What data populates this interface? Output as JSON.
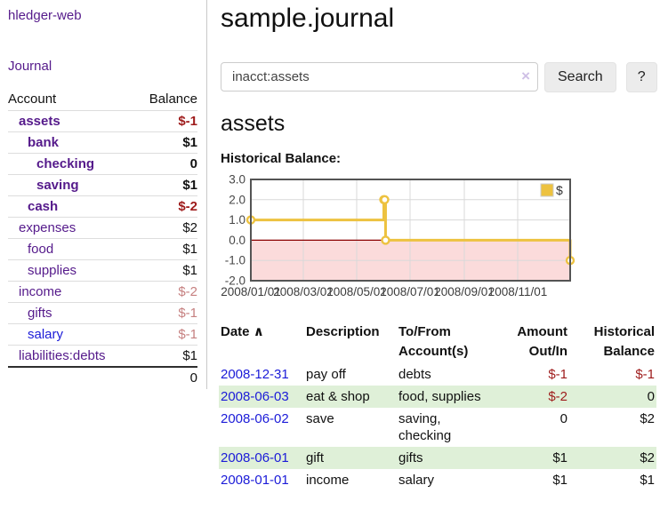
{
  "colors": {
    "link_purple": "#551a8b",
    "link_blue": "#1b1bd8",
    "negative_strong": "#9e1b1b",
    "negative_soft": "#c68080",
    "row_stripe_green": "#dff0d8",
    "chart_line_gold": "#edc240",
    "chart_negative_fill": "#fbdbdb",
    "chart_zero_line": "#8b0000"
  },
  "app": {
    "brand": "hledger-web"
  },
  "sidebar": {
    "journal_link": "Journal",
    "accounts": {
      "col_account": "Account",
      "col_balance": "Balance",
      "rows": [
        {
          "name": "assets",
          "balance": "$-1",
          "acct_class": "lvl1",
          "link_class": "cur",
          "bal_class": "cur neg"
        },
        {
          "name": "bank",
          "balance": "$1",
          "acct_class": "lvl2",
          "link_class": "cur",
          "bal_class": "cur"
        },
        {
          "name": "checking",
          "balance": "0",
          "acct_class": "lvl3",
          "link_class": "cur",
          "bal_class": "cur"
        },
        {
          "name": "saving",
          "balance": "$1",
          "acct_class": "lvl3",
          "link_class": "cur",
          "bal_class": "cur"
        },
        {
          "name": "cash",
          "balance": "$-2",
          "acct_class": "lvl2",
          "link_class": "cur",
          "bal_class": "cur neg"
        },
        {
          "name": "expenses",
          "balance": "$2",
          "acct_class": "lvl1",
          "link_class": "",
          "bal_class": ""
        },
        {
          "name": "food",
          "balance": "$1",
          "acct_class": "lvl2",
          "link_class": "",
          "bal_class": ""
        },
        {
          "name": "supplies",
          "balance": "$1",
          "acct_class": "lvl2",
          "link_class": "",
          "bal_class": ""
        },
        {
          "name": "income",
          "balance": "$-2",
          "acct_class": "lvl1",
          "link_class": "",
          "bal_class": "negsoft"
        },
        {
          "name": "gifts",
          "balance": "$-1",
          "acct_class": "lvl2",
          "link_class": "",
          "bal_class": "negsoft"
        },
        {
          "name": "salary",
          "balance": "$-1",
          "acct_class": "lvl2",
          "link_class": "blue",
          "bal_class": "negsoft"
        },
        {
          "name": "liabilities:debts",
          "balance": "$1",
          "acct_class": "lvl1",
          "link_class": "",
          "bal_class": ""
        }
      ],
      "total": "0"
    }
  },
  "main": {
    "title": "sample.journal",
    "search": {
      "value": "inacct:assets",
      "clear_icon": "×",
      "search_button": "Search",
      "help_button": "?"
    },
    "account_title": "assets",
    "chart_heading": "Historical Balance:"
  },
  "chart_data": {
    "type": "line",
    "step": true,
    "title": "Historical Balance of assets",
    "series": [
      {
        "name": "$",
        "color": "#edc240",
        "points": [
          [
            "2008-01-01",
            1
          ],
          [
            "2008-06-01",
            2
          ],
          [
            "2008-06-02",
            2
          ],
          [
            "2008-06-03",
            0
          ],
          [
            "2008-12-31",
            -1
          ]
        ]
      }
    ],
    "x_range": [
      "2008-01-01",
      "2008-12-31"
    ],
    "ylim": [
      -2,
      3
    ],
    "y_ticks": [
      "3.0",
      "2.0",
      "1.0",
      "0.0",
      "-1.0",
      "-2.0"
    ],
    "x_ticks": [
      "2008/01/01",
      "2008/03/01",
      "2008/05/01",
      "2008/07/01",
      "2008/09/01",
      "2008/11/01"
    ],
    "legend": {
      "label": "$",
      "position": "top-right"
    },
    "grid": true,
    "negative_band": true,
    "zero_line": true
  },
  "register": {
    "headers": {
      "date": "Date",
      "sort_icon": "∧",
      "description": "Description",
      "accounts_line1": "To/From",
      "accounts_line2": "Account(s)",
      "amount_line1": "Amount",
      "amount_line2": "Out/In",
      "balance_line1": "Historical",
      "balance_line2": "Balance"
    },
    "rows": [
      {
        "date": "2008-12-31",
        "description": "pay off",
        "accounts": "debts",
        "amount": "$-1",
        "amount_class": "neg",
        "balance": "$-1",
        "balance_class": "neg"
      },
      {
        "date": "2008-06-03",
        "description": "eat & shop",
        "accounts": "food, supplies",
        "amount": "$-2",
        "amount_class": "neg",
        "balance": "0",
        "balance_class": ""
      },
      {
        "date": "2008-06-02",
        "description": "save",
        "accounts": "saving, checking",
        "amount": "0",
        "amount_class": "",
        "balance": "$2",
        "balance_class": ""
      },
      {
        "date": "2008-06-01",
        "description": "gift",
        "accounts": "gifts",
        "amount": "$1",
        "amount_class": "",
        "balance": "$2",
        "balance_class": ""
      },
      {
        "date": "2008-01-01",
        "description": "income",
        "accounts": "salary",
        "amount": "$1",
        "amount_class": "",
        "balance": "$1",
        "balance_class": ""
      }
    ]
  }
}
